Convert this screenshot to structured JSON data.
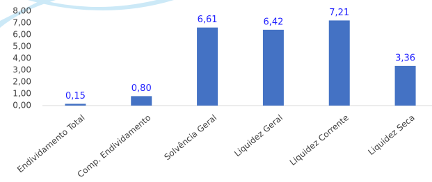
{
  "chart_data": {
    "type": "bar",
    "categories": [
      "Endividamento Total",
      "Comp. Endividamento",
      "Solvência Geral",
      "Liquidez  Geral",
      "Liquidez  Corrente",
      "Liquidez Seca"
    ],
    "values": [
      0.15,
      0.8,
      6.61,
      6.42,
      7.21,
      3.36
    ],
    "value_labels": [
      "0,15",
      "0,80",
      "6,61",
      "6,42",
      "7,21",
      "3,36"
    ],
    "color": "#4472c4",
    "ylim": [
      0,
      8
    ],
    "yticks": [
      {
        "value": 0,
        "label": "0,00"
      },
      {
        "value": 1,
        "label": "1,00"
      },
      {
        "value": 2,
        "label": "2,00"
      },
      {
        "value": 3,
        "label": "3,00"
      },
      {
        "value": 4,
        "label": "4,00"
      },
      {
        "value": 5,
        "label": "5,00"
      },
      {
        "value": 6,
        "label": "6,00"
      },
      {
        "value": 7,
        "label": "7,00"
      },
      {
        "value": 8,
        "label": "8,00"
      }
    ],
    "grid": false
  }
}
